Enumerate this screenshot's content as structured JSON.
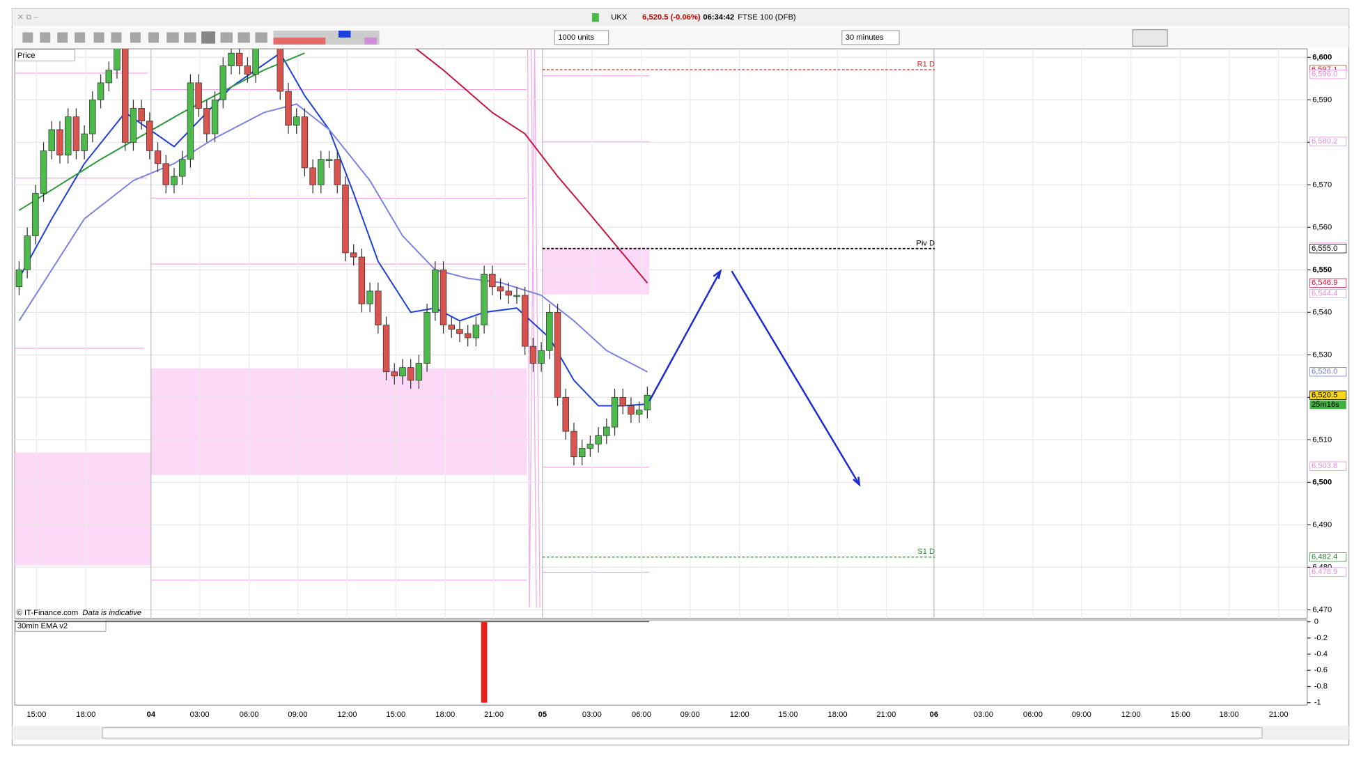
{
  "header": {
    "symbol": "UKX",
    "quote": "6,520.5 (-0.06%)",
    "time": "06:34:42",
    "name": "FTSE 100 (DFB)"
  },
  "toolbar": {
    "units": "1000 units",
    "interval": "30 minutes"
  },
  "chart_data": {
    "type": "candlestick",
    "title": "Price",
    "open": [
      6546,
      6550,
      6558,
      6568,
      6578,
      6583,
      6577,
      6586,
      6578,
      6582,
      6590,
      6594,
      6597,
      6603,
      6580,
      6588,
      6585,
      6578,
      6575,
      6570,
      6572,
      6576,
      6594,
      6588,
      6582,
      6590,
      6598,
      6601,
      6598,
      6596,
      6604,
      6606,
      6608,
      6592,
      6584,
      6586,
      6574,
      6570,
      6576,
      6576,
      6570,
      6554,
      6553,
      6542,
      6545,
      6537,
      6526,
      6525,
      6527,
      6524,
      6528,
      6540,
      6550,
      6537,
      6536,
      6535,
      6534,
      6537,
      6549,
      6546,
      6545,
      6544,
      6544,
      6532,
      6528,
      6531,
      6540,
      6520,
      6512,
      6506,
      6508,
      6509,
      6511,
      6513,
      6520,
      6518,
      6516,
      6517
    ],
    "high": [
      6552,
      6560,
      6570,
      6580,
      6585,
      6585,
      6588,
      6588,
      6584,
      6592,
      6596,
      6599,
      6605,
      6605,
      6590,
      6590,
      6587,
      6580,
      6577,
      6574,
      6578,
      6596,
      6596,
      6590,
      6592,
      6600,
      6603,
      6603,
      6600,
      6606,
      6608,
      6610,
      6610,
      6594,
      6588,
      6588,
      6576,
      6578,
      6578,
      6578,
      6572,
      6556,
      6555,
      6547,
      6547,
      6539,
      6528,
      6529,
      6529,
      6530,
      6542,
      6552,
      6552,
      6539,
      6538,
      6537,
      6539,
      6551,
      6551,
      6548,
      6547,
      6546,
      6546,
      6534,
      6533,
      6542,
      6542,
      6522,
      6514,
      6510,
      6511,
      6513,
      6515,
      6522,
      6522,
      6520,
      6519,
      6522.5
    ],
    "low": [
      6544,
      6548,
      6556,
      6566,
      6576,
      6575,
      6575,
      6576,
      6576,
      6580,
      6588,
      6592,
      6595,
      6578,
      6578,
      6583,
      6576,
      6573,
      6568,
      6568,
      6570,
      6574,
      6586,
      6580,
      6580,
      6588,
      6596,
      6596,
      6594,
      6594,
      6602,
      6604,
      6590,
      6582,
      6582,
      6572,
      6568,
      6568,
      6574,
      6568,
      6552,
      6551,
      6540,
      6540,
      6535,
      6524,
      6523,
      6523,
      6522,
      6522,
      6526,
      6538,
      6535,
      6534,
      6533,
      6532,
      6532,
      6535,
      6544,
      6543,
      6542,
      6542,
      6530,
      6526,
      6526,
      6529,
      6518,
      6510,
      6504,
      6504,
      6506,
      6507,
      6509,
      6511,
      6516,
      6514,
      6514,
      6515
    ],
    "close": [
      6550,
      6558,
      6568,
      6578,
      6583,
      6577,
      6586,
      6578,
      6582,
      6590,
      6594,
      6597,
      6603,
      6580,
      6588,
      6585,
      6578,
      6575,
      6570,
      6572,
      6576,
      6594,
      6588,
      6582,
      6590,
      6598,
      6601,
      6598,
      6596,
      6604,
      6606,
      6608,
      6592,
      6584,
      6586,
      6574,
      6570,
      6576,
      6576,
      6570,
      6554,
      6553,
      6542,
      6545,
      6537,
      6526,
      6525,
      6527,
      6524,
      6528,
      6540,
      6550,
      6537,
      6536,
      6535,
      6534,
      6537,
      6549,
      6546,
      6545,
      6544,
      6544,
      6532,
      6528,
      6531,
      6540,
      6520,
      6512,
      6506,
      6508,
      6509,
      6511,
      6513,
      6520,
      6518,
      6516,
      6517,
      6520.5
    ],
    "up_color": "#4cbb4c",
    "down_color": "#d9534f",
    "ylim": [
      6468,
      6602
    ],
    "yticks": [
      {
        "value": 6600,
        "label": "6,600"
      },
      {
        "value": 6590,
        "label": "6,590"
      },
      {
        "value": 6580,
        "label": "6,580"
      },
      {
        "value": 6570,
        "label": "6,570"
      },
      {
        "value": 6560,
        "label": "6,560"
      },
      {
        "value": 6550,
        "label": "6,550"
      },
      {
        "value": 6540,
        "label": "6,540"
      },
      {
        "value": 6530,
        "label": "6,530"
      },
      {
        "value": 6520,
        "label": "6,520"
      },
      {
        "value": 6510,
        "label": "6,510"
      },
      {
        "value": 6500,
        "label": "6,500"
      },
      {
        "value": 6490,
        "label": "6,490"
      },
      {
        "value": 6480,
        "label": "6,480"
      },
      {
        "value": 6470,
        "label": "6,470"
      }
    ],
    "xticks": [
      "15:00",
      "18:00",
      "04",
      "03:00",
      "06:00",
      "09:00",
      "12:00",
      "15:00",
      "18:00",
      "21:00",
      "05",
      "03:00",
      "06:00",
      "09:00",
      "12:00",
      "15:00",
      "18:00",
      "21:00",
      "06",
      "03:00",
      "06:00",
      "09:00",
      "12:00",
      "15:00",
      "18:00",
      "21:00"
    ],
    "moving_averages": [
      {
        "color": "#1b3fd8",
        "x": [
          0,
          4,
          8,
          13,
          16,
          19,
          22,
          26,
          32,
          35,
          38,
          41,
          44,
          48,
          51,
          54,
          57,
          61,
          65,
          68,
          71,
          74,
          77
        ],
        "values": [
          6548,
          6562,
          6575,
          6587,
          6583,
          6579,
          6585,
          6593,
          6601,
          6591,
          6583,
          6568,
          6552,
          6540,
          6541,
          6538,
          6540,
          6541,
          6534,
          6524,
          6518,
          6518,
          6518.4
        ]
      },
      {
        "color": "#7b83e0",
        "x": [
          0,
          4,
          8,
          14,
          19,
          24,
          30,
          34,
          38,
          43,
          47,
          51,
          55,
          59,
          64,
          68,
          72,
          77
        ],
        "values": [
          6538,
          6550,
          6562,
          6571,
          6575,
          6581,
          6587,
          6589,
          6583,
          6571,
          6558,
          6550,
          6548,
          6547,
          6544,
          6538,
          6531,
          6526
        ]
      },
      {
        "color": "#2a9a3a",
        "x": [
          0,
          10,
          20,
          30,
          35
        ],
        "values": [
          6564,
          6576,
          6587,
          6597,
          6601
        ]
      },
      {
        "color": "#c8143c",
        "x": [
          48,
          52,
          58,
          62,
          66,
          70,
          77
        ],
        "values": [
          6603,
          6597,
          6587,
          6582,
          6572,
          6563,
          6546.9
        ]
      }
    ],
    "pivots": [
      {
        "label": "R1 D",
        "value": 6597.1,
        "color": "#d62728"
      },
      {
        "label": "Piv D",
        "value": 6555.0,
        "color": "#000000"
      },
      {
        "label": "S1 D",
        "value": 6482.4,
        "color": "#2a8a2a"
      }
    ],
    "price_labels": [
      {
        "value": 6597.1,
        "label": "6,597.1",
        "color": "#d62728"
      },
      {
        "value": 6596.0,
        "label": "6,596.0",
        "color": "#e88be0"
      },
      {
        "value": 6580.2,
        "label": "6,580.2",
        "color": "#e88be0"
      },
      {
        "value": 6555.3,
        "label": "6,555.3",
        "color": "#e88be0"
      },
      {
        "value": 6555.0,
        "label": "6,555.0",
        "color": "#000000"
      },
      {
        "value": 6546.9,
        "label": "6,546.9",
        "color": "#c8143c"
      },
      {
        "value": 6544.4,
        "label": "6,544.4",
        "color": "#e88be0"
      },
      {
        "value": 6526.0,
        "label": "6,526.0",
        "color": "#6b73d6"
      },
      {
        "value": 6520.5,
        "label": "6,520.5",
        "color": "#000000",
        "fill": "#f7d51d"
      },
      {
        "value": 6503.8,
        "label": "6,503.8",
        "color": "#e88be0"
      },
      {
        "value": 6482.4,
        "label": "6,482.4",
        "color": "#2a8a2a"
      },
      {
        "value": 6478.9,
        "label": "6,478.9",
        "color": "#e88be0"
      }
    ],
    "countdown": "25m16s",
    "footer": {
      "source": "© IT-Finance.com",
      "note": "Data is indicative"
    }
  },
  "indicator": {
    "title": "30min EMA v2",
    "ylim": [
      -1.03,
      0
    ],
    "yticks": [
      0,
      -0.2,
      -0.4,
      -0.6,
      -0.8,
      -1
    ],
    "bar": {
      "x": 57,
      "value": -1,
      "color": "#e8201a"
    }
  }
}
